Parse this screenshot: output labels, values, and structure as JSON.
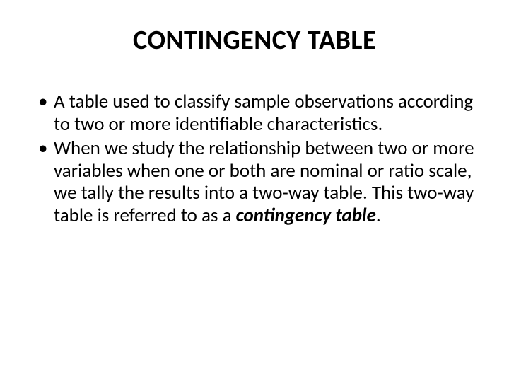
{
  "slide": {
    "title": "CONTINGENCY TABLE",
    "bullets": [
      {
        "text": "A table used to classify sample observations according to two or more identifiable characteristics."
      },
      {
        "prefix": "When we study the relationship between two or more variables when one or both are nominal or ratio scale, we tally the results into a two-way table. This two-way table is referred to as a ",
        "emphasis": "contingency table",
        "suffix": "."
      }
    ]
  },
  "style": {
    "background_color": "#ffffff",
    "text_color": "#000000",
    "title_fontsize": 38,
    "body_fontsize": 27,
    "font_family": "Calibri"
  }
}
